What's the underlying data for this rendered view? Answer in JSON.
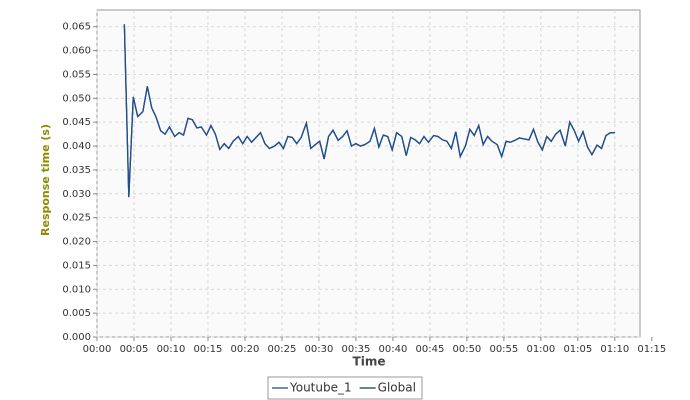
{
  "chart_data": {
    "type": "line",
    "x_label": "Time",
    "y_label": "Response time (s)",
    "xlim": [
      0,
      73.4
    ],
    "ylim": [
      0,
      0.0685
    ],
    "xticks": [
      {
        "value": 0,
        "label": "00:00"
      },
      {
        "value": 5,
        "label": "00:05"
      },
      {
        "value": 10,
        "label": "00:10"
      },
      {
        "value": 15,
        "label": "00:15"
      },
      {
        "value": 20,
        "label": "00:20"
      },
      {
        "value": 25,
        "label": "00:25"
      },
      {
        "value": 30,
        "label": "00:30"
      },
      {
        "value": 35,
        "label": "00:35"
      },
      {
        "value": 40,
        "label": "00:40"
      },
      {
        "value": 45,
        "label": "00:45"
      },
      {
        "value": 50,
        "label": "00:50"
      },
      {
        "value": 55,
        "label": "00:55"
      },
      {
        "value": 60,
        "label": "01:00"
      },
      {
        "value": 65,
        "label": "01:05"
      },
      {
        "value": 70,
        "label": "01:10"
      },
      {
        "value": 75,
        "label": "01:15"
      }
    ],
    "yticks": [
      {
        "value": 0,
        "label": "0.000"
      },
      0.005,
      {
        "value": 0.01,
        "label": "0.010"
      },
      0.015,
      {
        "value": 0.02,
        "label": "0.020"
      },
      0.025,
      {
        "value": 0.03,
        "label": "0.030"
      },
      0.035,
      {
        "value": 0.04,
        "label": "0.040"
      },
      0.045,
      {
        "value": 0.05,
        "label": "0.050"
      },
      0.055,
      {
        "value": 0.06,
        "label": "0.060"
      },
      0.065
    ],
    "grid": true,
    "x": [
      3.7,
      4.3,
      4.9,
      5.5,
      6.2,
      6.8,
      7.4,
      8.0,
      8.6,
      9.2,
      9.8,
      10.5,
      11.1,
      11.7,
      12.3,
      12.9,
      13.5,
      14.1,
      14.8,
      15.4,
      16.0,
      16.6,
      17.2,
      17.8,
      18.4,
      19.1,
      19.7,
      20.3,
      20.9,
      21.5,
      22.1,
      22.7,
      23.3,
      24.0,
      24.6,
      25.2,
      25.8,
      26.4,
      27.0,
      27.6,
      28.3,
      28.9,
      29.5,
      30.1,
      30.7,
      31.3,
      31.9,
      32.6,
      33.2,
      33.8,
      34.4,
      35.0,
      35.6,
      36.2,
      36.9,
      37.5,
      38.1,
      38.7,
      39.3,
      39.9,
      40.5,
      41.2,
      41.8,
      42.4,
      43.0,
      43.6,
      44.2,
      44.8,
      45.5,
      46.1,
      46.7,
      47.3,
      47.9,
      48.5,
      49.1,
      49.8,
      50.4,
      51.0,
      51.6,
      52.2,
      52.8,
      53.4,
      54.1,
      54.7,
      55.3,
      55.9,
      56.5,
      57.1,
      57.7,
      58.4,
      59.0,
      59.6,
      60.2,
      60.8,
      61.4,
      62.0,
      62.6,
      63.3,
      63.9,
      64.5,
      65.1,
      65.7,
      66.3,
      66.9,
      67.6,
      68.2,
      68.8,
      69.4,
      70.0
    ],
    "series": [
      {
        "name": "Youtube_1",
        "color": "#1f4f8f",
        "values": [
          0.0655,
          0.0293,
          0.0503,
          0.0462,
          0.0472,
          0.0525,
          0.048,
          0.046,
          0.0432,
          0.0425,
          0.044,
          0.042,
          0.0428,
          0.0423,
          0.0458,
          0.0455,
          0.0438,
          0.044,
          0.0423,
          0.0443,
          0.0425,
          0.0393,
          0.0405,
          0.0395,
          0.041,
          0.042,
          0.0405,
          0.042,
          0.0408,
          0.0418,
          0.0428,
          0.0405,
          0.0395,
          0.04,
          0.0408,
          0.0395,
          0.042,
          0.0418,
          0.0405,
          0.0418,
          0.0448,
          0.0395,
          0.0403,
          0.041,
          0.0373,
          0.042,
          0.0433,
          0.0412,
          0.042,
          0.0432,
          0.04,
          0.0405,
          0.04,
          0.0403,
          0.041,
          0.0437,
          0.0398,
          0.0423,
          0.042,
          0.0392,
          0.0428,
          0.042,
          0.038,
          0.0418,
          0.0413,
          0.0405,
          0.042,
          0.0408,
          0.0422,
          0.042,
          0.0413,
          0.041,
          0.0395,
          0.043,
          0.0378,
          0.04,
          0.0435,
          0.0422,
          0.0443,
          0.0403,
          0.042,
          0.041,
          0.0403,
          0.0378,
          0.041,
          0.0408,
          0.0412,
          0.0417,
          0.0415,
          0.0413,
          0.0435,
          0.0408,
          0.0392,
          0.042,
          0.041,
          0.0425,
          0.0433,
          0.04,
          0.045,
          0.0433,
          0.041,
          0.043,
          0.0398,
          0.0382,
          0.0402,
          0.0395,
          0.0422,
          0.0428,
          0.0428
        ]
      },
      {
        "name": "Global",
        "color": "#1c3557",
        "values": [
          0.0655,
          0.0293,
          0.0503,
          0.0462,
          0.0472,
          0.0525,
          0.048,
          0.046,
          0.0432,
          0.0425,
          0.044,
          0.042,
          0.0428,
          0.0423,
          0.0458,
          0.0455,
          0.0438,
          0.044,
          0.0423,
          0.0443,
          0.0425,
          0.0393,
          0.0405,
          0.0395,
          0.041,
          0.042,
          0.0405,
          0.042,
          0.0408,
          0.0418,
          0.0428,
          0.0405,
          0.0395,
          0.04,
          0.0408,
          0.0395,
          0.042,
          0.0418,
          0.0405,
          0.0418,
          0.0448,
          0.0395,
          0.0403,
          0.041,
          0.0373,
          0.042,
          0.0433,
          0.0412,
          0.042,
          0.0432,
          0.04,
          0.0405,
          0.04,
          0.0403,
          0.041,
          0.0437,
          0.0398,
          0.0423,
          0.042,
          0.0392,
          0.0428,
          0.042,
          0.038,
          0.0418,
          0.0413,
          0.0405,
          0.042,
          0.0408,
          0.0422,
          0.042,
          0.0413,
          0.041,
          0.0395,
          0.043,
          0.0378,
          0.04,
          0.0435,
          0.0422,
          0.0443,
          0.0403,
          0.042,
          0.041,
          0.0403,
          0.0378,
          0.041,
          0.0408,
          0.0412,
          0.0417,
          0.0415,
          0.0413,
          0.0435,
          0.0408,
          0.0392,
          0.042,
          0.041,
          0.0425,
          0.0433,
          0.04,
          0.045,
          0.0433,
          0.041,
          0.043,
          0.0398,
          0.0382,
          0.0402,
          0.0395,
          0.0422,
          0.0428,
          0.0428
        ]
      }
    ]
  }
}
